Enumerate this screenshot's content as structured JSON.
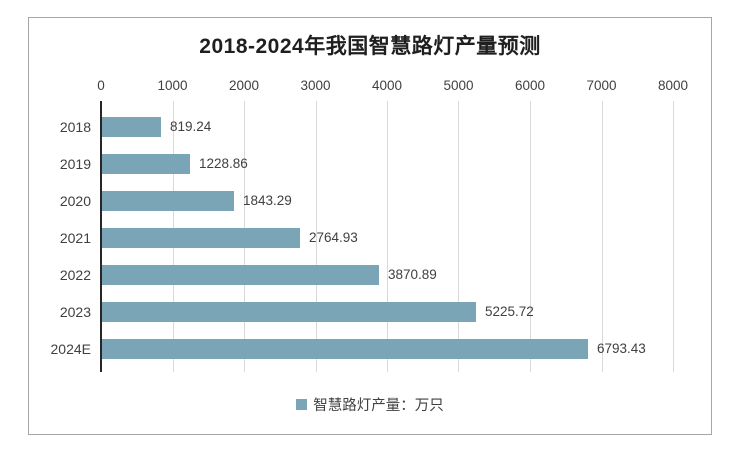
{
  "chart_data": {
    "type": "bar",
    "orientation": "horizontal",
    "title": "2018-2024年我国智慧路灯产量预测",
    "categories": [
      "2018",
      "2019",
      "2020",
      "2021",
      "2022",
      "2023",
      "2024E"
    ],
    "values": [
      819.24,
      1228.86,
      1843.29,
      2764.93,
      3870.89,
      5225.72,
      6793.43
    ],
    "value_labels": [
      "819.24",
      "1228.86",
      "1843.29",
      "2764.93",
      "3870.89",
      "5225.72",
      "6793.43"
    ],
    "x_ticks": [
      0,
      1000,
      2000,
      3000,
      4000,
      5000,
      6000,
      7000,
      8000
    ],
    "xlim": [
      0,
      8000
    ],
    "xlabel": "",
    "ylabel": "",
    "grid": "vertical-major",
    "value_axis_position": "top",
    "legend": {
      "position": "bottom-center",
      "entries": [
        "智慧路灯产量：万只"
      ]
    },
    "colors": {
      "bar": "#7aa5b6",
      "legend_swatch": "#7aa5b6",
      "gridline": "#d9d9d9",
      "axis_line": "#262626",
      "frame_border": "#a6a6a6",
      "title_text": "#1f1f1f",
      "label_text": "#404040"
    }
  }
}
